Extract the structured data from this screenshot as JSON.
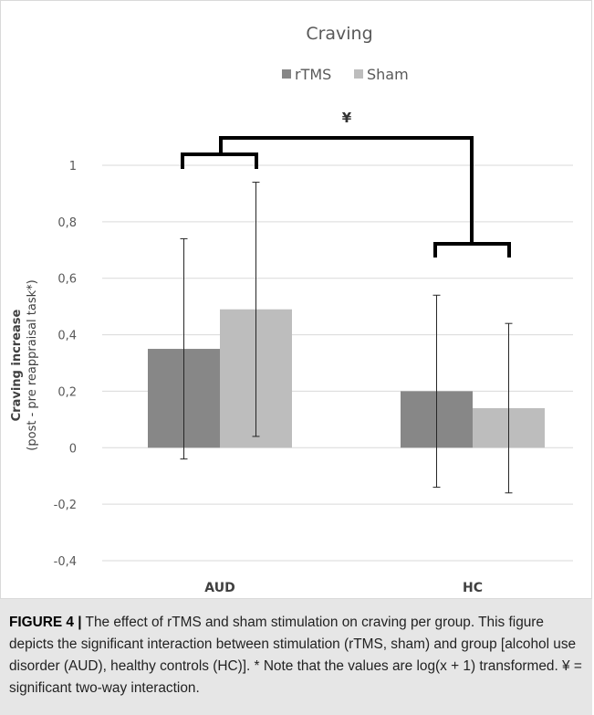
{
  "chart_data": {
    "type": "bar",
    "title": "Craving",
    "ylabel_line1": "Craving increase",
    "ylabel_line2": "(post - pre reappraisal task*)",
    "xlabel": "",
    "categories": [
      "AUD",
      "HC"
    ],
    "ylim": [
      -0.4,
      1.0
    ],
    "yticks": [
      -0.4,
      -0.2,
      0,
      0.2,
      0.4,
      0.6,
      0.8,
      1.0
    ],
    "ytick_labels": [
      "-0,4",
      "-0,2",
      "0",
      "0,2",
      "0,4",
      "0,6",
      "0,8",
      "1"
    ],
    "grid": true,
    "legend_position": "top",
    "series": [
      {
        "name": "rTMS",
        "color": "#878787",
        "values": [
          0.35,
          0.2
        ],
        "error_low": [
          -0.04,
          -0.14
        ],
        "error_high": [
          0.74,
          0.54
        ]
      },
      {
        "name": "Sham",
        "color": "#bdbdbd",
        "values": [
          0.49,
          0.14
        ],
        "error_low": [
          0.04,
          -0.16
        ],
        "error_high": [
          0.94,
          0.44
        ]
      }
    ],
    "annotations": [
      {
        "text": "¥",
        "meaning": "significant two-way interaction bracket"
      }
    ]
  },
  "caption": {
    "label": "FIGURE 4 |",
    "text": " The effect of rTMS and sham stimulation on craving per group. This figure depicts the significant interaction between stimulation (rTMS, sham) and group [alcohol use disorder (AUD), healthy controls (HC)]. * Note that the values are log(x + 1) transformed. ¥ = significant two-way interaction."
  }
}
